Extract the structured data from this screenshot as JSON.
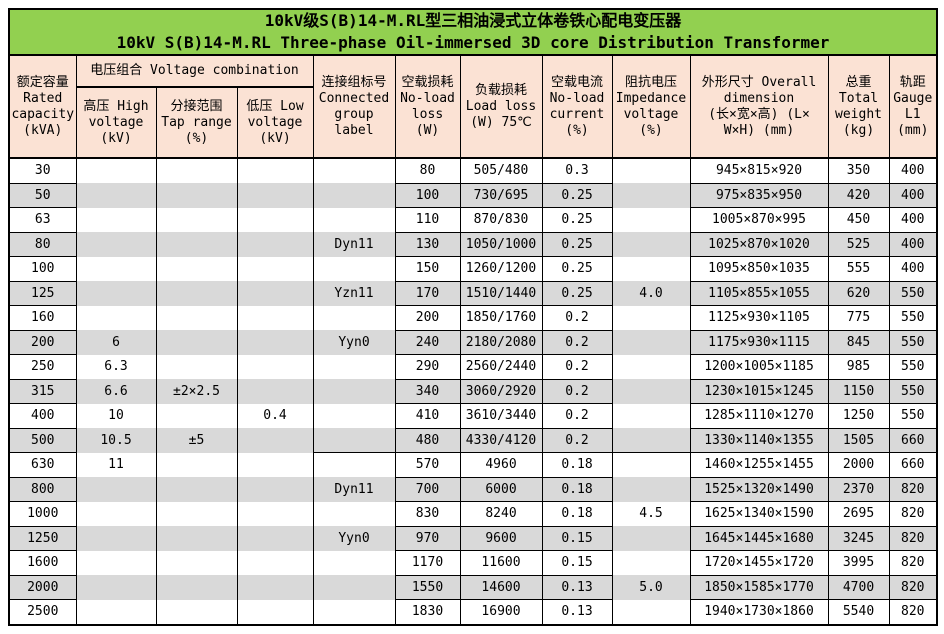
{
  "title": {
    "zh": "10kV级S(B)14-M.RL型三相油浸式立体卷铁心配电变压器",
    "en": "10kV S(B)14-M.RL Three-phase Oil-immersed 3D core Distribution Transformer"
  },
  "colors": {
    "title_bg": "#92D050",
    "header_bg": "#FBE2D4",
    "row_alt_bg": "#D9D9D9",
    "border": "#000000",
    "text": "#000000"
  },
  "header": {
    "capacity": "额定容量\nRated\ncapacity\n(kVA)",
    "voltage_combination": "电压组合 Voltage combination",
    "high_voltage": "高压 High\nvoltage\n(kV)",
    "tap_range": "分接范围\nTap range\n(%)",
    "low_voltage": "低压 Low\nvoltage\n(kV)",
    "connected_group": "连接组标号\nConnected\ngroup\nlabel",
    "no_load_loss": "空载损耗\nNo-load\nloss\n(W)",
    "load_loss": "负载损耗\nLoad loss\n(W) 75℃",
    "no_load_current": "空载电流\nNo-load\ncurrent\n(%)",
    "impedance_voltage": "阻抗电压\nImpedance\nvoltage\n(%)",
    "dimension": "外形尺寸 Overall\ndimension\n(长×宽×高) (L×\nW×H) (mm)",
    "total_weight": "总重\nTotal\nweight\n(kg)",
    "gauge": "轨距\nGauge\nL1\n(mm)"
  },
  "rows": [
    {
      "capacity": "30",
      "hv": "",
      "tap": "",
      "lv": "",
      "group": "",
      "nll": "80",
      "ll": "505/480",
      "nlc": "0.3",
      "imp": "",
      "dim": "945×815×920",
      "weight": "350",
      "gauge": "400"
    },
    {
      "capacity": "50",
      "hv": "",
      "tap": "",
      "lv": "",
      "group": "",
      "nll": "100",
      "ll": "730/695",
      "nlc": "0.25",
      "imp": "",
      "dim": "975×835×950",
      "weight": "420",
      "gauge": "400"
    },
    {
      "capacity": "63",
      "hv": "",
      "tap": "",
      "lv": "",
      "group": "",
      "nll": "110",
      "ll": "870/830",
      "nlc": "0.25",
      "imp": "",
      "dim": "1005×870×995",
      "weight": "450",
      "gauge": "400"
    },
    {
      "capacity": "80",
      "hv": "",
      "tap": "",
      "lv": "",
      "group": "Dyn11",
      "nll": "130",
      "ll": "1050/1000",
      "nlc": "0.25",
      "imp": "",
      "dim": "1025×870×1020",
      "weight": "525",
      "gauge": "400"
    },
    {
      "capacity": "100",
      "hv": "",
      "tap": "",
      "lv": "",
      "group": "",
      "nll": "150",
      "ll": "1260/1200",
      "nlc": "0.25",
      "imp": "",
      "dim": "1095×850×1035",
      "weight": "555",
      "gauge": "400"
    },
    {
      "capacity": "125",
      "hv": "",
      "tap": "",
      "lv": "",
      "group": "Yzn11",
      "nll": "170",
      "ll": "1510/1440",
      "nlc": "0.25",
      "imp": "4.0",
      "dim": "1105×855×1055",
      "weight": "620",
      "gauge": "550"
    },
    {
      "capacity": "160",
      "hv": "",
      "tap": "",
      "lv": "",
      "group": "",
      "nll": "200",
      "ll": "1850/1760",
      "nlc": "0.2",
      "imp": "",
      "dim": "1125×930×1105",
      "weight": "775",
      "gauge": "550"
    },
    {
      "capacity": "200",
      "hv": "6",
      "tap": "",
      "lv": "",
      "group": "Yyn0",
      "nll": "240",
      "ll": "2180/2080",
      "nlc": "0.2",
      "imp": "",
      "dim": "1175×930×1115",
      "weight": "845",
      "gauge": "550"
    },
    {
      "capacity": "250",
      "hv": "6.3",
      "tap": "",
      "lv": "",
      "group": "",
      "nll": "290",
      "ll": "2560/2440",
      "nlc": "0.2",
      "imp": "",
      "dim": "1200×1005×1185",
      "weight": "985",
      "gauge": "550"
    },
    {
      "capacity": "315",
      "hv": "6.6",
      "tap": "±2×2.5",
      "lv": "",
      "group": "",
      "nll": "340",
      "ll": "3060/2920",
      "nlc": "0.2",
      "imp": "",
      "dim": "1230×1015×1245",
      "weight": "1150",
      "gauge": "550"
    },
    {
      "capacity": "400",
      "hv": "10",
      "tap": "",
      "lv": "0.4",
      "group": "",
      "nll": "410",
      "ll": "3610/3440",
      "nlc": "0.2",
      "imp": "",
      "dim": "1285×1110×1270",
      "weight": "1250",
      "gauge": "550"
    },
    {
      "capacity": "500",
      "hv": "10.5",
      "tap": "±5",
      "lv": "",
      "group": "",
      "nll": "480",
      "ll": "4330/4120",
      "nlc": "0.2",
      "imp": "",
      "dim": "1330×1140×1355",
      "weight": "1505",
      "gauge": "660"
    },
    {
      "capacity": "630",
      "hv": "11",
      "tap": "",
      "lv": "",
      "group": "",
      "nll": "570",
      "ll": "4960",
      "nlc": "0.18",
      "imp": "",
      "dim": "1460×1255×1455",
      "weight": "2000",
      "gauge": "660"
    },
    {
      "capacity": "800",
      "hv": "",
      "tap": "",
      "lv": "",
      "group": "Dyn11",
      "nll": "700",
      "ll": "6000",
      "nlc": "0.18",
      "imp": "",
      "dim": "1525×1320×1490",
      "weight": "2370",
      "gauge": "820"
    },
    {
      "capacity": "1000",
      "hv": "",
      "tap": "",
      "lv": "",
      "group": "",
      "nll": "830",
      "ll": "8240",
      "nlc": "0.18",
      "imp": "4.5",
      "dim": "1625×1340×1590",
      "weight": "2695",
      "gauge": "820"
    },
    {
      "capacity": "1250",
      "hv": "",
      "tap": "",
      "lv": "",
      "group": "Yyn0",
      "nll": "970",
      "ll": "9600",
      "nlc": "0.15",
      "imp": "",
      "dim": "1645×1445×1680",
      "weight": "3245",
      "gauge": "820"
    },
    {
      "capacity": "1600",
      "hv": "",
      "tap": "",
      "lv": "",
      "group": "",
      "nll": "1170",
      "ll": "11600",
      "nlc": "0.15",
      "imp": "",
      "dim": "1720×1455×1720",
      "weight": "3995",
      "gauge": "820"
    },
    {
      "capacity": "2000",
      "hv": "",
      "tap": "",
      "lv": "",
      "group": "",
      "nll": "1550",
      "ll": "14600",
      "nlc": "0.13",
      "imp": "5.0",
      "dim": "1850×1585×1770",
      "weight": "4700",
      "gauge": "820"
    },
    {
      "capacity": "2500",
      "hv": "",
      "tap": "",
      "lv": "",
      "group": "",
      "nll": "1830",
      "ll": "16900",
      "nlc": "0.13",
      "imp": "",
      "dim": "1940×1730×1860",
      "weight": "5540",
      "gauge": "820"
    }
  ]
}
